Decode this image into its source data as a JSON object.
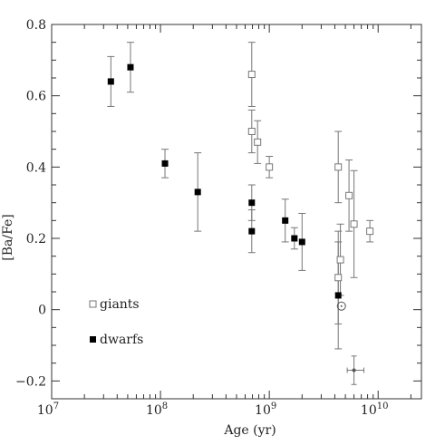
{
  "chart_data": {
    "type": "scatter",
    "title": "",
    "xlabel": "Age (yr)",
    "ylabel": "[Ba/Fe]",
    "x_scale": "log",
    "xlim": [
      10000000,
      25000000000
    ],
    "ylim": [
      -0.25,
      0.8
    ],
    "x_ticks": [
      {
        "value": 10000000,
        "base": "10",
        "exp": "7"
      },
      {
        "value": 100000000,
        "base": "10",
        "exp": "8"
      },
      {
        "value": 1000000000,
        "base": "10",
        "exp": "9"
      },
      {
        "value": 10000000000,
        "base": "10",
        "exp": "10"
      }
    ],
    "y_ticks": [
      {
        "value": 0.8,
        "label": "0.8"
      },
      {
        "value": 0.6,
        "label": "0.6"
      },
      {
        "value": 0.4,
        "label": "0.4"
      },
      {
        "value": 0.2,
        "label": "0.2"
      },
      {
        "value": 0.0,
        "label": "0"
      },
      {
        "value": -0.2,
        "label": "−0.2"
      }
    ],
    "grid": false,
    "legend_position": "lower-left",
    "colors": {
      "axis": "#333333",
      "errorbar": "#777777",
      "dwarf_fill": "#000000",
      "giant_stroke": "#777777",
      "sun": "#555555"
    },
    "series": [
      {
        "name": "giants",
        "marker": "open-square",
        "points": [
          {
            "x": 690000000,
            "y": 0.66,
            "err": 0.09
          },
          {
            "x": 690000000,
            "y": 0.5,
            "err": 0.06
          },
          {
            "x": 780000000,
            "y": 0.47,
            "err": 0.06
          },
          {
            "x": 1000000000,
            "y": 0.4,
            "err": 0.03
          },
          {
            "x": 4300000000,
            "y": 0.4,
            "err": 0.1
          },
          {
            "x": 5400000000,
            "y": 0.32,
            "err": 0.1
          },
          {
            "x": 6000000000,
            "y": 0.24,
            "err": 0.15
          },
          {
            "x": 8400000000,
            "y": 0.22,
            "err": 0.03
          },
          {
            "x": 4500000000,
            "y": 0.14,
            "err": 0.1
          },
          {
            "x": 4300000000,
            "y": 0.09,
            "err": 0.13
          }
        ]
      },
      {
        "name": "dwarfs",
        "marker": "filled-square",
        "points": [
          {
            "x": 35000000,
            "y": 0.64,
            "err": 0.07
          },
          {
            "x": 53000000,
            "y": 0.68,
            "err": 0.07
          },
          {
            "x": 110000000,
            "y": 0.41,
            "err": 0.04
          },
          {
            "x": 220000000,
            "y": 0.33,
            "err": 0.11
          },
          {
            "x": 690000000,
            "y": 0.3,
            "err": 0.05
          },
          {
            "x": 690000000,
            "y": 0.22,
            "err": 0.06
          },
          {
            "x": 1400000000,
            "y": 0.25,
            "err": 0.06
          },
          {
            "x": 1700000000,
            "y": 0.2,
            "err": 0.03
          },
          {
            "x": 2000000000,
            "y": 0.19,
            "err": 0.08
          },
          {
            "x": 4300000000,
            "y": 0.04,
            "err": 0.15
          }
        ]
      }
    ],
    "annotations": [
      {
        "kind": "sun-symbol",
        "x": 4600000000,
        "y": 0.01
      },
      {
        "kind": "error-cross",
        "x": 6000000000,
        "y": -0.17,
        "yerr": 0.04,
        "xerr_low": 800000000,
        "xerr_high": 1400000000
      }
    ]
  }
}
